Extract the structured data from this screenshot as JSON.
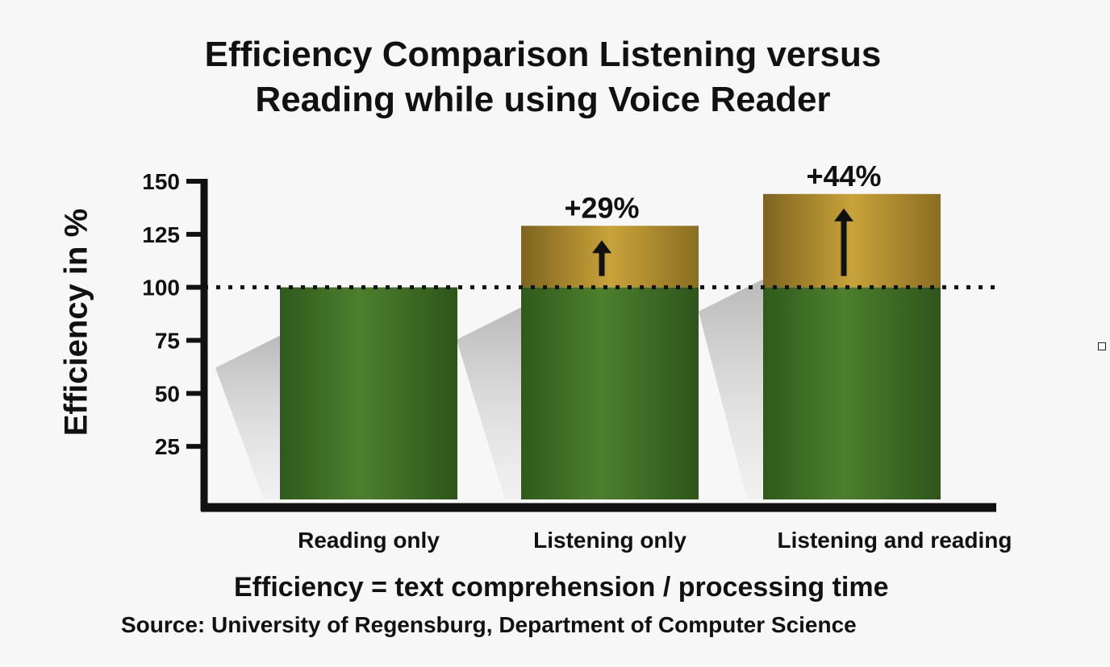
{
  "chart_data": {
    "type": "bar",
    "title_lines": [
      "Efficiency Comparison Listening versus",
      "Reading while using Voice Reader"
    ],
    "ylabel": "Efficiency in %",
    "xlabel": "",
    "categories": [
      "Reading only",
      "Listening only",
      "Listening and reading"
    ],
    "baseline_value": 100,
    "values": [
      100,
      129,
      144
    ],
    "gain_labels": [
      "",
      "+29%",
      "+44%"
    ],
    "yticks": [
      25,
      50,
      75,
      100,
      125,
      150
    ],
    "ylim": [
      0,
      150
    ],
    "reference_line": 100,
    "colors": {
      "base": "#4d7f2e",
      "gain": "#c9a23a",
      "axis": "#111111",
      "shadow": "#9a9a9a"
    },
    "grid": false,
    "legend": "none"
  },
  "footer": {
    "formula": "Efficiency = text comprehension / processing time",
    "source": "Source: University of Regensburg, Department of Computer Science"
  }
}
